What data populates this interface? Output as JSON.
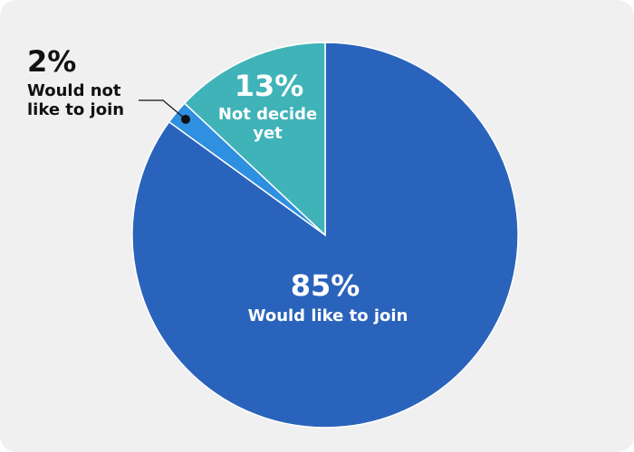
{
  "chart_data": {
    "type": "pie",
    "categories": [
      "Would like to join",
      "Would not like to join",
      "Not decide yet"
    ],
    "values": [
      85,
      2,
      13
    ],
    "value_labels": [
      "85%",
      "2%",
      "13%"
    ],
    "colors": [
      "#2a63bb",
      "#2f8fe0",
      "#40b3b8"
    ]
  }
}
